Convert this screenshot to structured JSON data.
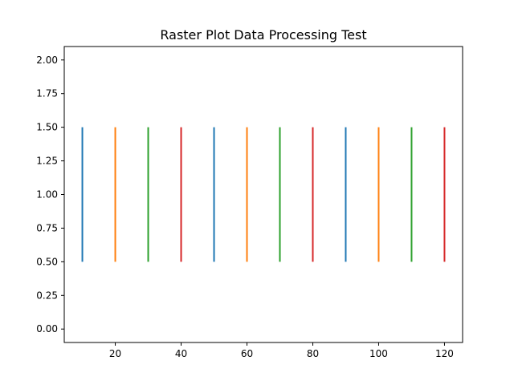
{
  "chart_data": {
    "type": "eventplot",
    "title": "Raster Plot Data Processing Test",
    "xlabel": "",
    "ylabel": "",
    "xlim": [
      4.5,
      125.5
    ],
    "ylim": [
      -0.1,
      2.1
    ],
    "xticks": [
      20,
      40,
      60,
      80,
      100,
      120
    ],
    "xtick_labels": [
      "20",
      "40",
      "60",
      "80",
      "100",
      "120"
    ],
    "yticks": [
      0.0,
      0.25,
      0.5,
      0.75,
      1.0,
      1.25,
      1.5,
      1.75,
      2.0
    ],
    "ytick_labels": [
      "0.00",
      "0.25",
      "0.50",
      "0.75",
      "1.00",
      "1.25",
      "1.50",
      "1.75",
      "2.00"
    ],
    "grid": false,
    "events": [
      {
        "x": 10,
        "y_start": 0.5,
        "y_end": 1.5,
        "color": "#1f77b4"
      },
      {
        "x": 20,
        "y_start": 0.5,
        "y_end": 1.5,
        "color": "#ff7f0e"
      },
      {
        "x": 30,
        "y_start": 0.5,
        "y_end": 1.5,
        "color": "#2ca02c"
      },
      {
        "x": 40,
        "y_start": 0.5,
        "y_end": 1.5,
        "color": "#d62728"
      },
      {
        "x": 50,
        "y_start": 0.5,
        "y_end": 1.5,
        "color": "#1f77b4"
      },
      {
        "x": 60,
        "y_start": 0.5,
        "y_end": 1.5,
        "color": "#ff7f0e"
      },
      {
        "x": 70,
        "y_start": 0.5,
        "y_end": 1.5,
        "color": "#2ca02c"
      },
      {
        "x": 80,
        "y_start": 0.5,
        "y_end": 1.5,
        "color": "#d62728"
      },
      {
        "x": 90,
        "y_start": 0.5,
        "y_end": 1.5,
        "color": "#1f77b4"
      },
      {
        "x": 100,
        "y_start": 0.5,
        "y_end": 1.5,
        "color": "#ff7f0e"
      },
      {
        "x": 110,
        "y_start": 0.5,
        "y_end": 1.5,
        "color": "#2ca02c"
      },
      {
        "x": 120,
        "y_start": 0.5,
        "y_end": 1.5,
        "color": "#d62728"
      }
    ]
  }
}
